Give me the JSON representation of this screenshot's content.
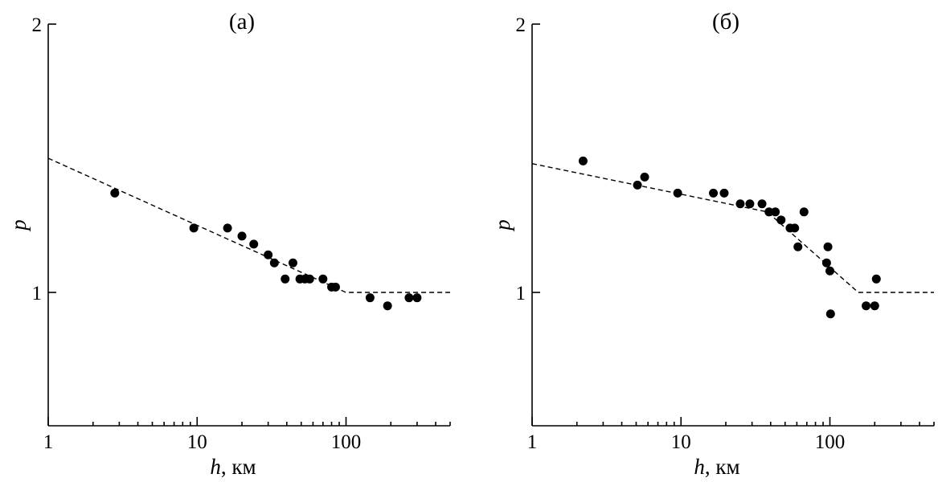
{
  "chart_data": [
    {
      "type": "scatter",
      "title": "(а)",
      "xlabel_var": "h",
      "xlabel_unit": ", км",
      "ylabel": "p",
      "xscale": "log",
      "xlim": [
        1,
        500
      ],
      "ylim": [
        0.5,
        2.0
      ],
      "xticks": [
        {
          "v": 1,
          "label": "1"
        },
        {
          "v": 10,
          "label": "10"
        },
        {
          "v": 100,
          "label": "100"
        }
      ],
      "yticks": [
        {
          "v": 1,
          "label": "1"
        },
        {
          "v": 2,
          "label": "2"
        }
      ],
      "points": [
        {
          "x": 2.8,
          "y": 1.37
        },
        {
          "x": 9.5,
          "y": 1.24
        },
        {
          "x": 16,
          "y": 1.24
        },
        {
          "x": 20,
          "y": 1.21
        },
        {
          "x": 24,
          "y": 1.18
        },
        {
          "x": 30,
          "y": 1.14
        },
        {
          "x": 33,
          "y": 1.11
        },
        {
          "x": 39,
          "y": 1.05
        },
        {
          "x": 44,
          "y": 1.11
        },
        {
          "x": 49,
          "y": 1.05
        },
        {
          "x": 53,
          "y": 1.05
        },
        {
          "x": 57,
          "y": 1.05
        },
        {
          "x": 70,
          "y": 1.05
        },
        {
          "x": 80,
          "y": 1.02
        },
        {
          "x": 85,
          "y": 1.02
        },
        {
          "x": 145,
          "y": 0.98
        },
        {
          "x": 190,
          "y": 0.95
        },
        {
          "x": 265,
          "y": 0.98
        },
        {
          "x": 300,
          "y": 0.98
        }
      ],
      "fit": [
        {
          "x": 1,
          "y": 1.5
        },
        {
          "x": 100,
          "y": 1.0
        },
        {
          "x": 500,
          "y": 1.0
        }
      ]
    },
    {
      "type": "scatter",
      "title": "(б)",
      "xlabel_var": "h",
      "xlabel_unit": ", км",
      "ylabel": "p",
      "xscale": "log",
      "xlim": [
        1,
        500
      ],
      "ylim": [
        0.5,
        2.0
      ],
      "xticks": [
        {
          "v": 1,
          "label": "1"
        },
        {
          "v": 10,
          "label": "10"
        },
        {
          "v": 100,
          "label": "100"
        }
      ],
      "yticks": [
        {
          "v": 1,
          "label": "1"
        },
        {
          "v": 2,
          "label": "2"
        }
      ],
      "points": [
        {
          "x": 2.2,
          "y": 1.49
        },
        {
          "x": 5.1,
          "y": 1.4
        },
        {
          "x": 5.7,
          "y": 1.43
        },
        {
          "x": 9.5,
          "y": 1.37
        },
        {
          "x": 16.5,
          "y": 1.37
        },
        {
          "x": 19.5,
          "y": 1.37
        },
        {
          "x": 25,
          "y": 1.33
        },
        {
          "x": 29,
          "y": 1.33
        },
        {
          "x": 35,
          "y": 1.33
        },
        {
          "x": 39,
          "y": 1.3
        },
        {
          "x": 43,
          "y": 1.3
        },
        {
          "x": 47,
          "y": 1.27
        },
        {
          "x": 54,
          "y": 1.24
        },
        {
          "x": 58,
          "y": 1.24
        },
        {
          "x": 61,
          "y": 1.17
        },
        {
          "x": 67,
          "y": 1.3
        },
        {
          "x": 95,
          "y": 1.11
        },
        {
          "x": 97,
          "y": 1.17
        },
        {
          "x": 100,
          "y": 1.08
        },
        {
          "x": 101,
          "y": 0.92
        },
        {
          "x": 175,
          "y": 0.95
        },
        {
          "x": 200,
          "y": 0.95
        },
        {
          "x": 205,
          "y": 1.05
        }
      ],
      "fit": [
        {
          "x": 1,
          "y": 1.48
        },
        {
          "x": 38,
          "y": 1.3
        },
        {
          "x": 155,
          "y": 1.0
        },
        {
          "x": 500,
          "y": 1.0
        }
      ]
    }
  ]
}
